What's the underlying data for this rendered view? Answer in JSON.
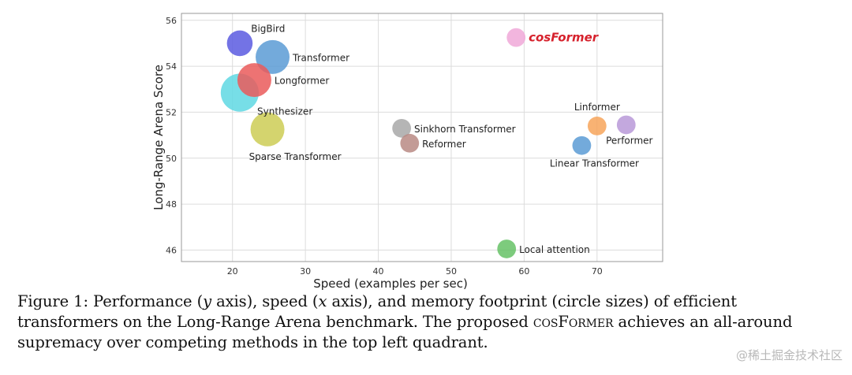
{
  "chart_data": {
    "type": "scatter",
    "title": "",
    "xlabel": "Speed (examples per sec)",
    "ylabel": "Long-Range Arena Score",
    "xlim": [
      13,
      79
    ],
    "ylim": [
      45.5,
      56.3
    ],
    "xticks": [
      20,
      30,
      40,
      50,
      60,
      70
    ],
    "yticks": [
      46,
      48,
      50,
      52,
      54,
      56
    ],
    "grid": true,
    "size_meaning": "memory footprint",
    "points": [
      {
        "name": "BigBird",
        "x": 21,
        "y": 55.0,
        "size": 0.55,
        "color": "#5a5ae0",
        "label_pos": "above-right"
      },
      {
        "name": "Transformer",
        "x": 25.5,
        "y": 54.4,
        "size": 0.75,
        "color": "#5b9bd5",
        "label_pos": "right"
      },
      {
        "name": "Longformer",
        "x": 23,
        "y": 53.4,
        "size": 0.75,
        "color": "#ea5a5a",
        "label_pos": "right"
      },
      {
        "name": "Synthesizer",
        "x": 21,
        "y": 52.85,
        "size": 0.85,
        "color": "#5fd8e3",
        "label_pos": "below-right"
      },
      {
        "name": "Sparse Transformer",
        "x": 24.8,
        "y": 51.25,
        "size": 0.75,
        "color": "#cccc55",
        "label_pos": "below"
      },
      {
        "name": "Sinkhorn Transformer",
        "x": 43.2,
        "y": 51.3,
        "size": 0.38,
        "color": "#a8a8a8",
        "label_pos": "right"
      },
      {
        "name": "Reformer",
        "x": 44.3,
        "y": 50.65,
        "size": 0.38,
        "color": "#b98a84",
        "label_pos": "right"
      },
      {
        "name": "cosFormer",
        "x": 58.9,
        "y": 55.25,
        "size": 0.38,
        "color": "#f0a8d8",
        "label_pos": "right",
        "highlight": true
      },
      {
        "name": "Linformer",
        "x": 70,
        "y": 51.4,
        "size": 0.38,
        "color": "#f7a55a",
        "label_pos": "above"
      },
      {
        "name": "Performer",
        "x": 74,
        "y": 51.45,
        "size": 0.38,
        "color": "#b899d8",
        "label_pos": "below"
      },
      {
        "name": "Linear Transformer",
        "x": 67.9,
        "y": 50.55,
        "size": 0.38,
        "color": "#5b9bd5",
        "label_pos": "below"
      },
      {
        "name": "Local attention",
        "x": 57.6,
        "y": 46.05,
        "size": 0.38,
        "color": "#66c266",
        "label_pos": "right"
      }
    ]
  },
  "caption": {
    "prefix": "Figure 1: Performance (",
    "y_var": "y",
    "mid1": " axis), speed (",
    "x_var": "x",
    "mid2": " axis), and memory footprint (circle sizes) of efficient transformers on the Long-Range Arena benchmark. The proposed ",
    "model_name": "cosFormer",
    "suffix": " achieves an all-around supremacy over competing methods in the top left quadrant."
  },
  "watermark": "@稀土掘金技术社区"
}
